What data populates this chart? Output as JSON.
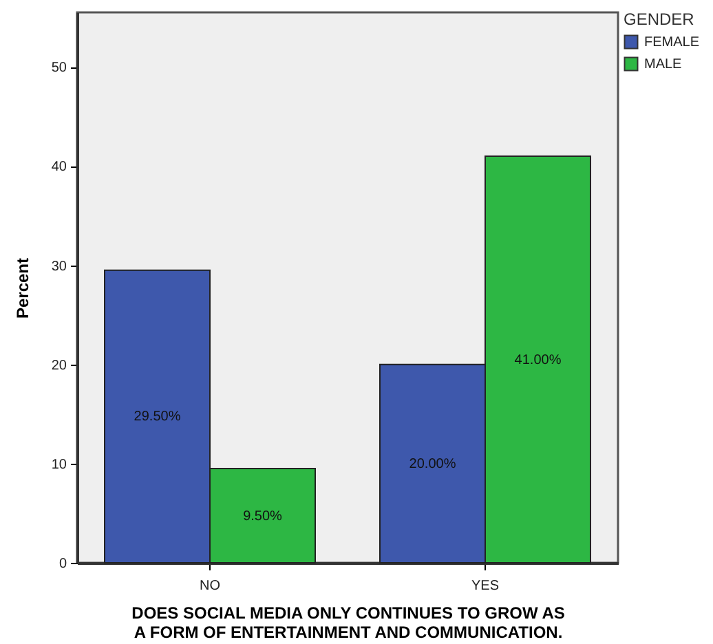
{
  "chart_data": {
    "type": "bar",
    "categories": [
      "NO",
      "YES"
    ],
    "series": [
      {
        "name": "FEMALE",
        "color": "#3e58ac",
        "values": [
          29.5,
          20
        ],
        "value_labels": [
          "29.50%",
          "20.00%"
        ]
      },
      {
        "name": "MALE",
        "color": "#2db744",
        "values": [
          9.5,
          41
        ],
        "value_labels": [
          "9.50%",
          "41.00%"
        ]
      }
    ],
    "xlabel": "DOES SOCIAL MEDIA ONLY CONTINUES TO GROW AS A  FORM OF ENTERTAINMENT AND COMMUNICATION.",
    "ylabel": "Percent",
    "legend_title": "GENDER",
    "legend": "top right",
    "ylim": [
      0,
      55.5
    ],
    "yticks": [
      0,
      10,
      20,
      30,
      40,
      50
    ],
    "grid": false
  }
}
